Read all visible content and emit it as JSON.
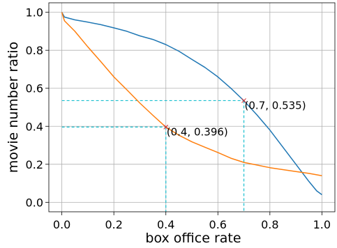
{
  "chart_data": {
    "type": "line",
    "title": "",
    "xlabel": "box office rate",
    "ylabel": "movie number ratio",
    "xlim": [
      -0.05,
      1.05
    ],
    "ylim": [
      -0.05,
      1.05
    ],
    "xticks": [
      0.0,
      0.2,
      0.4,
      0.6,
      0.8,
      1.0
    ],
    "xtick_labels": [
      "0.0",
      "0.2",
      "0.4",
      "0.6",
      "0.8",
      "1.0"
    ],
    "yticks": [
      0.0,
      0.2,
      0.4,
      0.6,
      0.8,
      1.0
    ],
    "ytick_labels": [
      "0.0",
      "0.2",
      "0.4",
      "0.6",
      "0.8",
      "1.0"
    ],
    "grid": true,
    "legend": "none",
    "series": [
      {
        "color": "#1f77b4",
        "x": [
          0.0,
          0.01,
          0.05,
          0.1,
          0.15,
          0.2,
          0.25,
          0.3,
          0.35,
          0.4,
          0.45,
          0.5,
          0.55,
          0.6,
          0.65,
          0.7,
          0.75,
          0.8,
          0.85,
          0.9,
          0.95,
          0.98,
          1.0
        ],
        "y": [
          1.0,
          0.975,
          0.96,
          0.948,
          0.935,
          0.918,
          0.9,
          0.876,
          0.857,
          0.83,
          0.795,
          0.752,
          0.71,
          0.66,
          0.6,
          0.535,
          0.46,
          0.38,
          0.29,
          0.2,
          0.11,
          0.06,
          0.04
        ]
      },
      {
        "color": "#ff7f0e",
        "x": [
          0.0,
          0.01,
          0.05,
          0.1,
          0.15,
          0.2,
          0.25,
          0.3,
          0.35,
          0.4,
          0.45,
          0.5,
          0.55,
          0.6,
          0.65,
          0.7,
          0.75,
          0.8,
          0.85,
          0.9,
          0.95,
          1.0
        ],
        "y": [
          1.0,
          0.955,
          0.9,
          0.818,
          0.74,
          0.66,
          0.592,
          0.522,
          0.458,
          0.396,
          0.353,
          0.318,
          0.29,
          0.262,
          0.232,
          0.21,
          0.196,
          0.182,
          0.172,
          0.162,
          0.152,
          0.14
        ]
      }
    ],
    "guides": {
      "color": "#17becf",
      "points": [
        {
          "x": 0.4,
          "y": 0.396,
          "label": "(0.4, 0.396)"
        },
        {
          "x": 0.7,
          "y": 0.535,
          "label": "(0.7, 0.535)"
        }
      ]
    }
  }
}
